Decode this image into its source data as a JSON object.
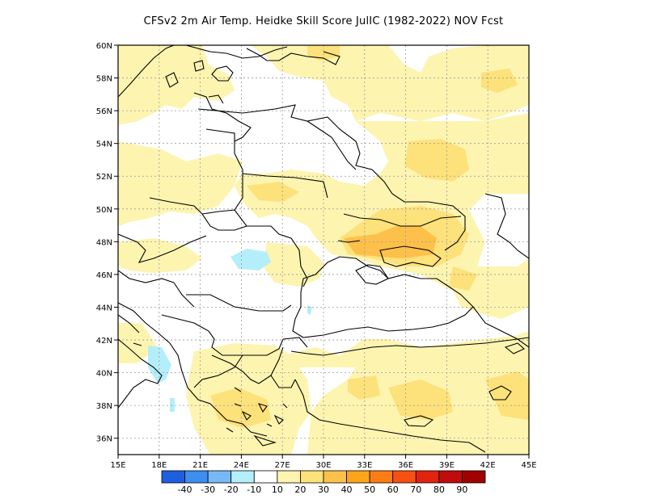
{
  "title": "CFSv2  2m Air Temp. Heidke Skill Score JulIC (1982-2022) NOV Fcst",
  "axes": {
    "lat_labels": [
      "60N",
      "58N",
      "56N",
      "54N",
      "52N",
      "50N",
      "48N",
      "46N",
      "44N",
      "42N",
      "40N",
      "38N",
      "36N"
    ],
    "lat_values": [
      60,
      58,
      56,
      54,
      52,
      50,
      48,
      46,
      44,
      42,
      40,
      38,
      36
    ],
    "lon_labels": [
      "15E",
      "18E",
      "21E",
      "24E",
      "27E",
      "30E",
      "33E",
      "36E",
      "39E",
      "42E",
      "45E"
    ],
    "lon_values": [
      15,
      18,
      21,
      24,
      27,
      30,
      33,
      36,
      39,
      42,
      45
    ],
    "lon_range": [
      15,
      45
    ],
    "lat_range": [
      35,
      60
    ],
    "grid": true
  },
  "colorbar": {
    "labels": [
      "-40",
      "-30",
      "-20",
      "-10",
      "10",
      "20",
      "30",
      "40",
      "50",
      "60",
      "70",
      "80",
      "90"
    ],
    "colors": [
      "#1e5fe0",
      "#3c8ef0",
      "#78b8f4",
      "#b4eefa",
      "#ffffff",
      "#fdf4b0",
      "#fde17a",
      "#fdc04a",
      "#fca41c",
      "#fb7d14",
      "#f65012",
      "#e0240e",
      "#c00c0c",
      "#a00000"
    ]
  },
  "regions": {
    "pale_yellow": "#fdf4b0",
    "yellow": "#fde17a",
    "orange": "#fdc04a",
    "cyan": "#b4eefa"
  }
}
